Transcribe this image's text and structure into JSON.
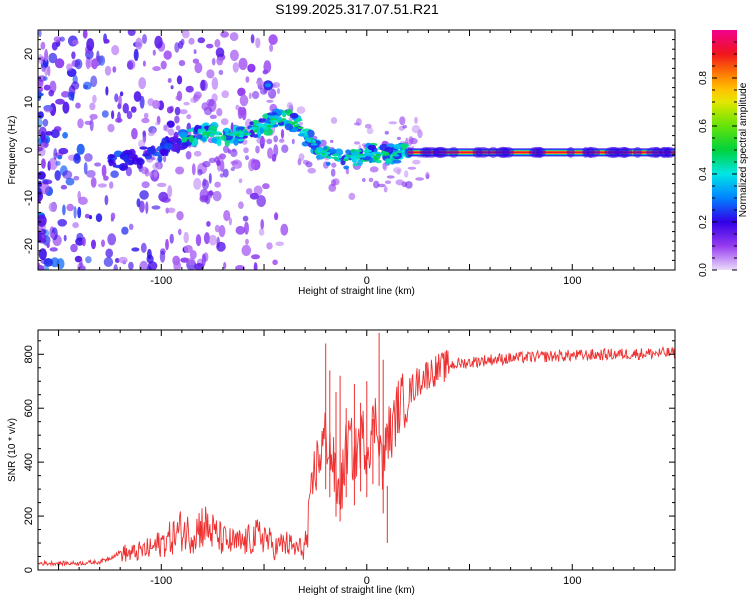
{
  "title": "S199.2025.317.07.51.R21",
  "chart_data": [
    {
      "type": "heatmap",
      "xlabel": "Height of straight line (km)",
      "ylabel": "Frequency (Hz)",
      "xlim": [
        -160,
        150
      ],
      "ylim": [
        -25,
        25
      ],
      "x_ticks": [
        -100,
        0,
        100
      ],
      "y_ticks": [
        -20,
        -10,
        0,
        10,
        20
      ],
      "colorbar": {
        "label": "Normalized spectral amplitude",
        "range": [
          0.0,
          1.0
        ],
        "ticks": [
          0.0,
          0.2,
          0.4,
          0.6,
          0.8
        ]
      },
      "ridge": {
        "x": [
          -125,
          -110,
          -100,
          -90,
          -80,
          -70,
          -60,
          -50,
          -45,
          -40,
          -35,
          -30,
          -25,
          -20,
          -15,
          -10,
          -5,
          0,
          10,
          20,
          150
        ],
        "y": [
          -2.5,
          -1.5,
          0,
          2,
          4,
          3,
          3.5,
          5,
          6,
          7,
          5.5,
          3,
          1,
          -1,
          -1.5,
          -2,
          -1.5,
          -0.5,
          -1,
          -0.5,
          -0.5
        ]
      },
      "tone_line": {
        "x_start": 20,
        "x_end": 150,
        "y": -0.5,
        "amplitude": 1.0
      }
    },
    {
      "type": "line",
      "xlabel": "Height of straight line (km)",
      "ylabel": "SNR (10 * v/v)",
      "xlim": [
        -160,
        150
      ],
      "ylim": [
        0,
        890
      ],
      "x_ticks": [
        -100,
        0,
        100
      ],
      "y_ticks": [
        0,
        200,
        400,
        600,
        800
      ],
      "series": [
        {
          "color": "#ee3030",
          "x": [
            -160,
            -140,
            -130,
            -125,
            -120,
            -115,
            -110,
            -105,
            -100,
            -95,
            -90,
            -85,
            -80,
            -75,
            -70,
            -65,
            -60,
            -55,
            -50,
            -45,
            -40,
            -35,
            -30,
            -28,
            -26,
            -24,
            -22,
            -20,
            -18,
            -16,
            -14,
            -12,
            -10,
            -8,
            -6,
            -4,
            -2,
            0,
            2,
            4,
            6,
            8,
            10,
            12,
            15,
            20,
            25,
            30,
            40,
            50,
            60,
            80,
            100,
            120,
            150
          ],
          "y": [
            25,
            25,
            30,
            45,
            65,
            60,
            70,
            80,
            100,
            120,
            150,
            130,
            170,
            140,
            110,
            100,
            100,
            120,
            130,
            80,
            100,
            80,
            80,
            160,
            350,
            400,
            450,
            500,
            450,
            380,
            280,
            320,
            450,
            480,
            400,
            470,
            500,
            450,
            500,
            560,
            520,
            350,
            520,
            500,
            600,
            650,
            700,
            730,
            760,
            770,
            780,
            790,
            795,
            800,
            805
          ]
        }
      ],
      "spikes": {
        "x": [
          -20,
          -18,
          -15,
          -13,
          -10,
          -6,
          -3,
          0,
          3,
          6,
          8,
          10
        ],
        "y": [
          840,
          740,
          660,
          720,
          600,
          690,
          620,
          700,
          560,
          880,
          780,
          100
        ]
      }
    }
  ]
}
